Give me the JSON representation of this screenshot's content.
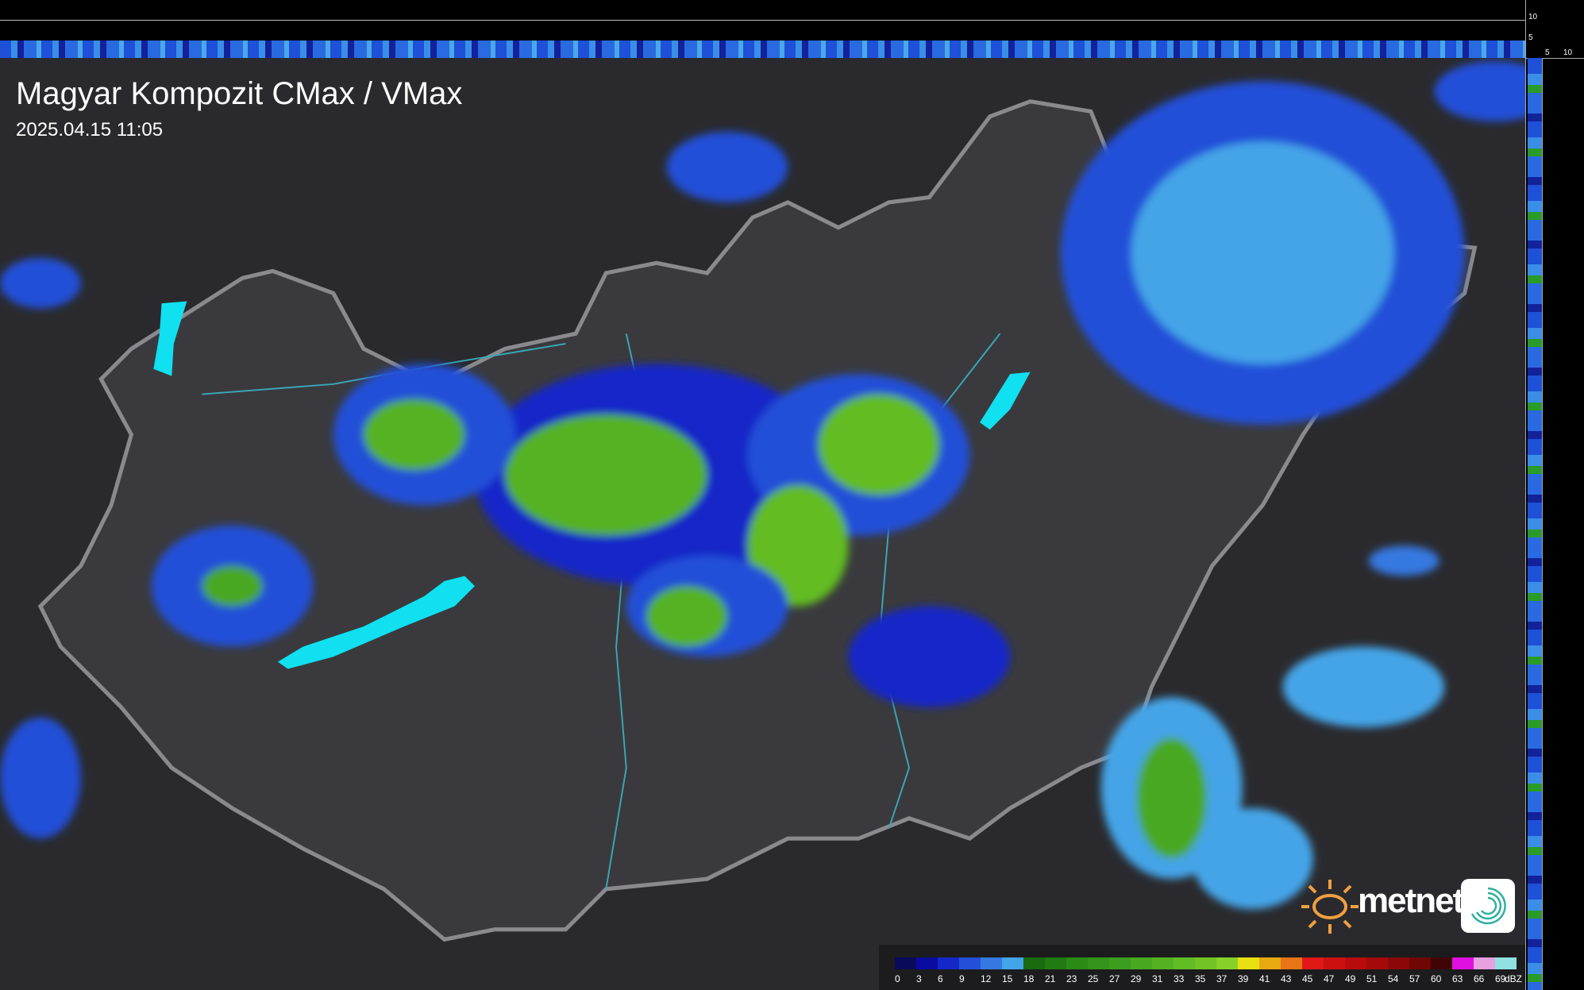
{
  "header": {
    "title": "Magyar Kompozit CMax / VMax",
    "timestamp": "2025.04.15 11:05"
  },
  "axes": {
    "top_ticks": [
      "10",
      "5"
    ],
    "side_ticks": [
      "5",
      "10"
    ]
  },
  "legend": {
    "unit": "dBZ",
    "labels": [
      "0",
      "3",
      "6",
      "9",
      "12",
      "15",
      "18",
      "21",
      "23",
      "25",
      "27",
      "29",
      "31",
      "33",
      "35",
      "37",
      "39",
      "41",
      "43",
      "45",
      "47",
      "49",
      "51",
      "54",
      "57",
      "60",
      "63",
      "66",
      "69"
    ],
    "colors": [
      "#0a0a5a",
      "#0a0ca0",
      "#1428c8",
      "#2450d8",
      "#3478e0",
      "#44a4e8",
      "#1a6a10",
      "#227a12",
      "#2a8a16",
      "#32941a",
      "#3c9e1e",
      "#48a820",
      "#54b222",
      "#62bc24",
      "#72c426",
      "#86d028",
      "#e8e010",
      "#e8a810",
      "#e87418",
      "#e01818",
      "#cc1010",
      "#b80c0c",
      "#a40a0a",
      "#8c0808",
      "#700606",
      "#400404",
      "#e010e0",
      "#e8a0e0",
      "#90e0e0"
    ]
  },
  "branding": {
    "logo": "metnet",
    "icon": "metnet-swirl-icon"
  },
  "colors": {
    "background": "#2e2e32",
    "border": "#8a8a8e",
    "rivers": "#3aa8b8",
    "lakes": "#10e0f0"
  }
}
